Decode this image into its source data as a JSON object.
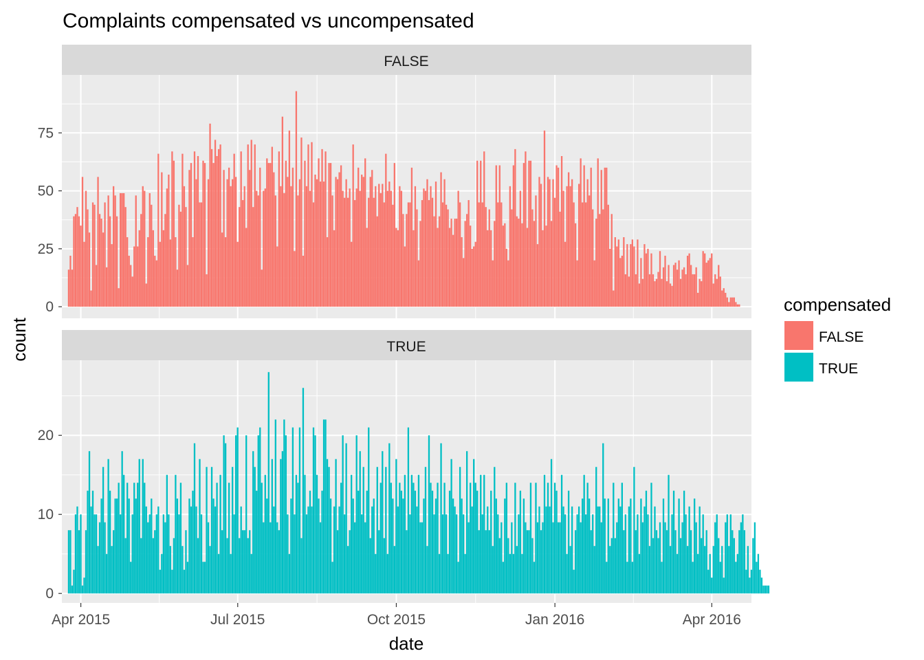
{
  "chart_data": {
    "type": "bar",
    "title": "Complaints compensated vs uncompensated",
    "xlabel": "date",
    "ylabel": "count",
    "x_ticks": [
      "Apr 2015",
      "Jul 2015",
      "Oct 2015",
      "Jan 2016",
      "Apr 2016"
    ],
    "x_range": [
      "2015-03-21",
      "2016-04-24"
    ],
    "grid": true,
    "legend": {
      "title": "compensated",
      "position": "right",
      "entries": [
        {
          "label": "FALSE",
          "color": "#F8766D"
        },
        {
          "label": "TRUE",
          "color": "#00BFC4"
        }
      ]
    },
    "panels": [
      {
        "strip": "FALSE",
        "color": "#F8766D",
        "ylim": [
          -5,
          100
        ],
        "y_ticks": [
          0,
          25,
          50,
          75
        ],
        "series": {
          "name": "FALSE",
          "start_date": "2015-03-25",
          "values": [
            16,
            22,
            16,
            39,
            40,
            43,
            39,
            35,
            56,
            28,
            50,
            42,
            32,
            7,
            45,
            44,
            18,
            56,
            40,
            38,
            32,
            45,
            17,
            48,
            39,
            27,
            52,
            48,
            39,
            8,
            49,
            49,
            49,
            43,
            30,
            22,
            18,
            13,
            26,
            48,
            26,
            33,
            40,
            52,
            50,
            10,
            30,
            49,
            44,
            33,
            22,
            20,
            66,
            28,
            58,
            33,
            40,
            51,
            57,
            29,
            67,
            63,
            30,
            16,
            44,
            41,
            66,
            52,
            43,
            18,
            59,
            62,
            30,
            67,
            55,
            65,
            45,
            45,
            63,
            62,
            14,
            55,
            79,
            68,
            62,
            72,
            65,
            68,
            70,
            32,
            59,
            30,
            55,
            60,
            52,
            55,
            66,
            56,
            28,
            43,
            67,
            46,
            52,
            34,
            70,
            59,
            72,
            43,
            70,
            50,
            48,
            60,
            16,
            50,
            51,
            64,
            62,
            62,
            69,
            58,
            48,
            26,
            67,
            52,
            82,
            49,
            63,
            56,
            76,
            52,
            60,
            24,
            93,
            48,
            55,
            73,
            22,
            63,
            52,
            70,
            50,
            71,
            45,
            57,
            55,
            64,
            54,
            68,
            54,
            67,
            30,
            62,
            62,
            48,
            33,
            56,
            55,
            58,
            61,
            50,
            47,
            55,
            47,
            51,
            28,
            70,
            46,
            51,
            60,
            50,
            57,
            56,
            64,
            34,
            47,
            56,
            59,
            47,
            52,
            39,
            53,
            49,
            53,
            45,
            66,
            50,
            54,
            50,
            44,
            62,
            34,
            33,
            52,
            50,
            40,
            26,
            40,
            45,
            45,
            60,
            33,
            52,
            42,
            20,
            37,
            46,
            51,
            50,
            55,
            46,
            52,
            47,
            39,
            54,
            34,
            39,
            58,
            45,
            55,
            44,
            42,
            34,
            38,
            31,
            38,
            38,
            50,
            45,
            30,
            21,
            37,
            40,
            46,
            35,
            25,
            26,
            28,
            63,
            45,
            63,
            45,
            67,
            43,
            33,
            42,
            33,
            20,
            37,
            61,
            45,
            61,
            45,
            35,
            36,
            25,
            20,
            52,
            42,
            61,
            68,
            39,
            38,
            50,
            36,
            62,
            67,
            34,
            63,
            63,
            42,
            37,
            48,
            27,
            56,
            53,
            33,
            76,
            35,
            56,
            55,
            37,
            55,
            47,
            61,
            60,
            41,
            65,
            50,
            28,
            52,
            58,
            52,
            55,
            45,
            36,
            20,
            53,
            64,
            45,
            61,
            45,
            55,
            48,
            60,
            42,
            20,
            38,
            64,
            40,
            59,
            42,
            60,
            60,
            44,
            25,
            40,
            7,
            30,
            26,
            29,
            21,
            22,
            30,
            14,
            27,
            13,
            27,
            29,
            26,
            14,
            29,
            10,
            21,
            12,
            27,
            23,
            25,
            14,
            23,
            14,
            11,
            12,
            15,
            24,
            12,
            17,
            22,
            11,
            18,
            10,
            9,
            18,
            19,
            16,
            20,
            12,
            16,
            17,
            14,
            22,
            23,
            18,
            14,
            14,
            17,
            6,
            12,
            11,
            24,
            23,
            19,
            20,
            21,
            23,
            10,
            14,
            12,
            18,
            13,
            7,
            8,
            6,
            4,
            2,
            4,
            4,
            4,
            2,
            1,
            1
          ]
        }
      },
      {
        "strip": "TRUE",
        "color": "#00BFC4",
        "ylim": [
          -1.2,
          29.5
        ],
        "y_ticks": [
          0,
          10,
          20
        ],
        "series": {
          "name": "TRUE",
          "start_date": "2015-03-25",
          "values": [
            8,
            8,
            1,
            3,
            10,
            11,
            8,
            10,
            1,
            2,
            8,
            13,
            18,
            11,
            13,
            10,
            10,
            6,
            9,
            12,
            16,
            9,
            5,
            17,
            13,
            6,
            8,
            12,
            12,
            14,
            10,
            18,
            15,
            7,
            14,
            12,
            4,
            10,
            14,
            12,
            14,
            17,
            7,
            17,
            14,
            11,
            9,
            10,
            12,
            7,
            8,
            10,
            11,
            3,
            5,
            10,
            9,
            15,
            10,
            6,
            3,
            7,
            15,
            12,
            10,
            14,
            6,
            3,
            8,
            4,
            12,
            11,
            13,
            19,
            11,
            7,
            17,
            10,
            4,
            4,
            16,
            9,
            6,
            16,
            12,
            11,
            14,
            5,
            15,
            8,
            20,
            19,
            7,
            14,
            5,
            16,
            10,
            20,
            21,
            7,
            11,
            8,
            8,
            20,
            7,
            8,
            5,
            18,
            16,
            13,
            20,
            21,
            14,
            9,
            15,
            12,
            28,
            9,
            17,
            11,
            22,
            9,
            8,
            17,
            18,
            22,
            20,
            10,
            5,
            12,
            21,
            10,
            15,
            14,
            21,
            7,
            26,
            15,
            10,
            11,
            13,
            11,
            21,
            20,
            15,
            12,
            9,
            13,
            22,
            22,
            17,
            16,
            12,
            4,
            11,
            17,
            8,
            11,
            14,
            20,
            10,
            19,
            6,
            8,
            15,
            12,
            9,
            20,
            13,
            18,
            10,
            16,
            9,
            13,
            21,
            7,
            11,
            12,
            5,
            16,
            8,
            14,
            18,
            7,
            16,
            5,
            19,
            14,
            12,
            6,
            17,
            11,
            14,
            13,
            12,
            15,
            8,
            21,
            10,
            15,
            14,
            13,
            11,
            15,
            9,
            9,
            12,
            16,
            6,
            20,
            14,
            13,
            10,
            12,
            14,
            5,
            19,
            10,
            14,
            10,
            5,
            13,
            17,
            12,
            11,
            10,
            4,
            16,
            12,
            10,
            5,
            18,
            9,
            14,
            11,
            17,
            14,
            13,
            8,
            15,
            10,
            15,
            8,
            11,
            8,
            13,
            6,
            16,
            12,
            10,
            7,
            9,
            4,
            12,
            14,
            7,
            5,
            9,
            5,
            14,
            6,
            10,
            13,
            5,
            12,
            9,
            8,
            8,
            14,
            7,
            4,
            14,
            9,
            11,
            8,
            9,
            15,
            11,
            14,
            11,
            17,
            9,
            14,
            13,
            9,
            9,
            15,
            11,
            10,
            5,
            13,
            6,
            11,
            3,
            8,
            10,
            11,
            9,
            12,
            15,
            10,
            14,
            12,
            8,
            10,
            6,
            16,
            11,
            11,
            9,
            19,
            12,
            4,
            12,
            6,
            7,
            14,
            7,
            9,
            12,
            11,
            14,
            8,
            10,
            4,
            11,
            12,
            4,
            16,
            8,
            10,
            5,
            12,
            9,
            11,
            13,
            10,
            6,
            14,
            7,
            11,
            8,
            7,
            9,
            4,
            12,
            9,
            8,
            15,
            6,
            10,
            13,
            8,
            5,
            12,
            7,
            9,
            13,
            10,
            6,
            11,
            8,
            4,
            12,
            9,
            5,
            11,
            7,
            10,
            6,
            8,
            3,
            5,
            2,
            6,
            9,
            10,
            7,
            4,
            6,
            2,
            9,
            10,
            6,
            10,
            8,
            7,
            4,
            5,
            8,
            9,
            10,
            8,
            3,
            6,
            2,
            3,
            7,
            9,
            4,
            5,
            3,
            2,
            1,
            1,
            1,
            1
          ]
        }
      }
    ]
  }
}
